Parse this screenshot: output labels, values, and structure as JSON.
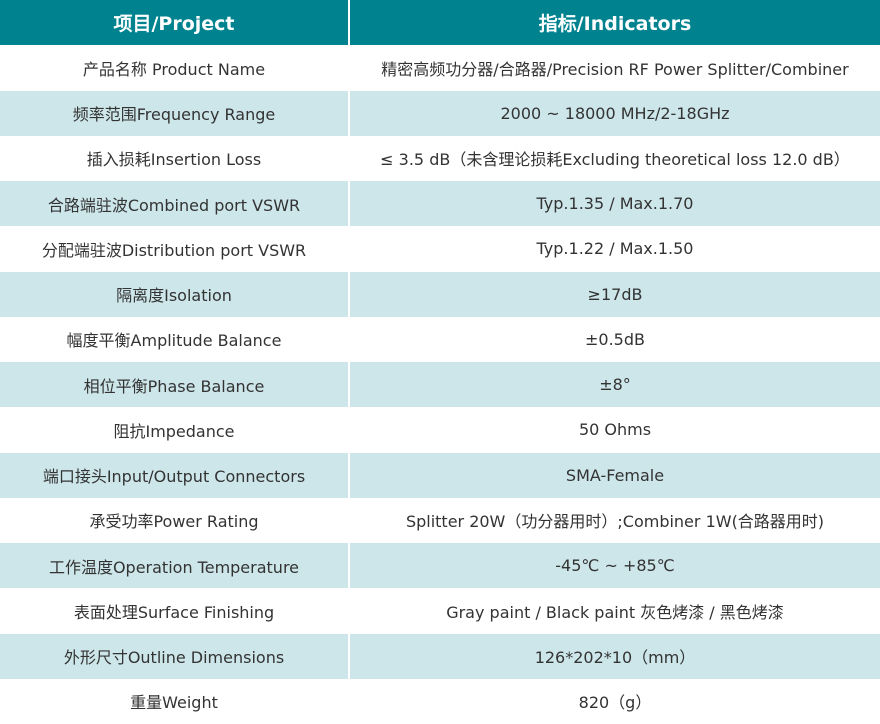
{
  "colors": {
    "header_bg": "#00838f",
    "alt_row_bg": "#cde6ea",
    "text": "#333333"
  },
  "header": {
    "project": "项目/Project",
    "indicators": "指标/Indicators"
  },
  "rows": [
    {
      "item": "产品名称 Product Name",
      "value": "精密高频功分器/合路器/Precision RF Power Splitter/Combiner"
    },
    {
      "item": "频率范围Frequency Range",
      "value": "2000 ~ 18000 MHz/2-18GHz"
    },
    {
      "item": "插入损耗Insertion Loss",
      "value": "≤ 3.5 dB（未含理论损耗Excluding theoretical loss 12.0 dB）"
    },
    {
      "item": "合路端驻波Combined port VSWR",
      "value": "Typ.1.35 / Max.1.70"
    },
    {
      "item": "分配端驻波Distribution port VSWR",
      "value": "Typ.1.22 / Max.1.50"
    },
    {
      "item": "隔离度Isolation",
      "value": "≥17dB"
    },
    {
      "item": "幅度平衡Amplitude Balance",
      "value": "±0.5dB"
    },
    {
      "item": "相位平衡Phase Balance",
      "value": "±8°"
    },
    {
      "item": "阻抗Impedance",
      "value": "50 Ohms"
    },
    {
      "item": "端口接头Input/Output Connectors",
      "value": "SMA-Female"
    },
    {
      "item": "承受功率Power Rating",
      "value": "Splitter 20W（功分器用时）;Combiner 1W(合路器用时)"
    },
    {
      "item": "工作温度Operation Temperature",
      "value": "-45℃ ~ +85℃"
    },
    {
      "item": "表面处理Surface Finishing",
      "value": "Gray paint / Black paint 灰色烤漆 / 黑色烤漆"
    },
    {
      "item": "外形尺寸Outline Dimensions",
      "value": "126*202*10（mm）"
    },
    {
      "item": "重量Weight",
      "value": "820（g）"
    }
  ]
}
